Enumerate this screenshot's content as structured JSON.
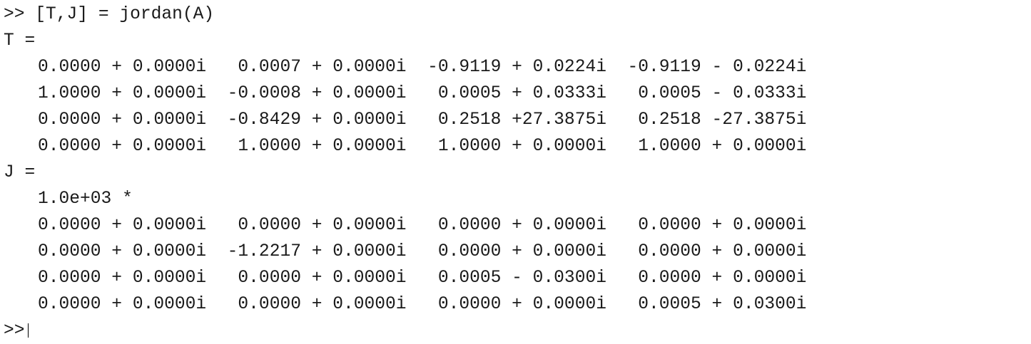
{
  "command": {
    "prompt": ">> ",
    "text": "[T,J] = jordan(A)"
  },
  "T": {
    "header": "T =",
    "rows": [
      "0.0000 + 0.0000i   0.0007 + 0.0000i  -0.9119 + 0.0224i  -0.9119 - 0.0224i",
      "1.0000 + 0.0000i  -0.0008 + 0.0000i   0.0005 + 0.0333i   0.0005 - 0.0333i",
      "0.0000 + 0.0000i  -0.8429 + 0.0000i   0.2518 +27.3875i   0.2518 -27.3875i",
      "0.0000 + 0.0000i   1.0000 + 0.0000i   1.0000 + 0.0000i   1.0000 + 0.0000i"
    ]
  },
  "J": {
    "header": "J =",
    "scale": "1.0e+03 *",
    "rows": [
      "0.0000 + 0.0000i   0.0000 + 0.0000i   0.0000 + 0.0000i   0.0000 + 0.0000i",
      "0.0000 + 0.0000i  -1.2217 + 0.0000i   0.0000 + 0.0000i   0.0000 + 0.0000i",
      "0.0000 + 0.0000i   0.0000 + 0.0000i   0.0005 - 0.0300i   0.0000 + 0.0000i",
      "0.0000 + 0.0000i   0.0000 + 0.0000i   0.0000 + 0.0000i   0.0005 + 0.0300i"
    ]
  },
  "next_prompt": ">>"
}
